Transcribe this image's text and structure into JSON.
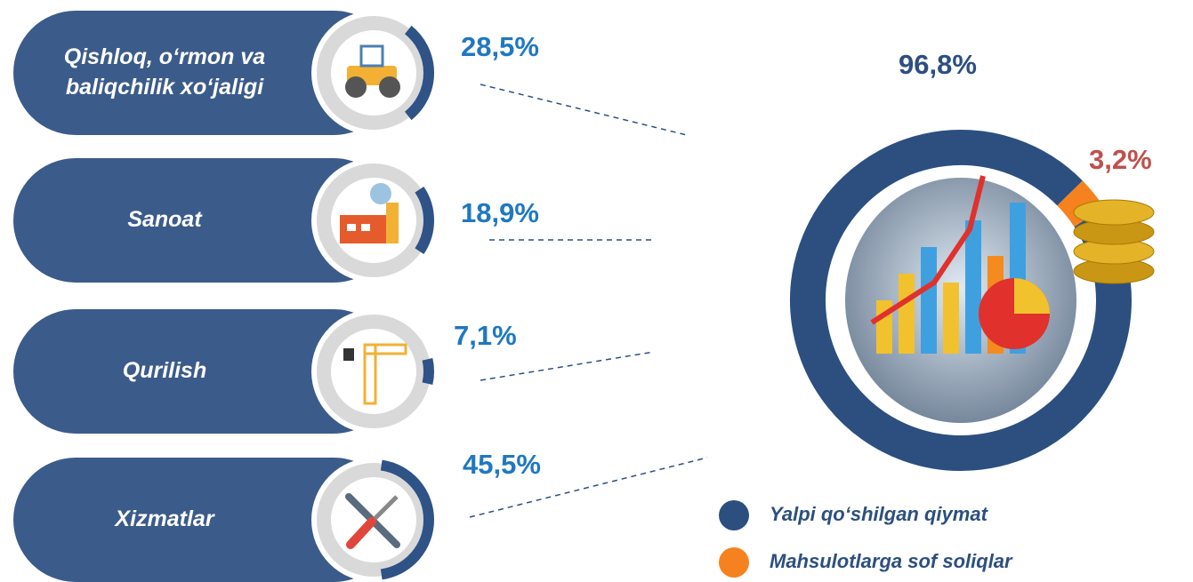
{
  "chart_data": [
    {
      "type": "sector-rings",
      "categories": [
        "Qishloq, o‘rmon va baliqchilik xo‘jaligi",
        "Sanoat",
        "Qurilish",
        "Xizmatlar"
      ],
      "values": [
        28.5,
        18.9,
        7.1,
        45.5
      ],
      "value_labels": [
        "28,5%",
        "18,9%",
        "7,1%",
        "45,5%"
      ],
      "color": "#2f5287"
    },
    {
      "type": "donut",
      "series": [
        {
          "name": "Yalpi qo‘shilgan qiymat",
          "color": "#2c4f80",
          "values": [
            96.8
          ],
          "value_labels": [
            "96,8%"
          ]
        },
        {
          "name": "Mahsulotlarga sof soliqlar",
          "color": "#f5821f",
          "values": [
            3.2
          ],
          "value_labels": [
            "3,2%"
          ]
        }
      ]
    }
  ]
}
